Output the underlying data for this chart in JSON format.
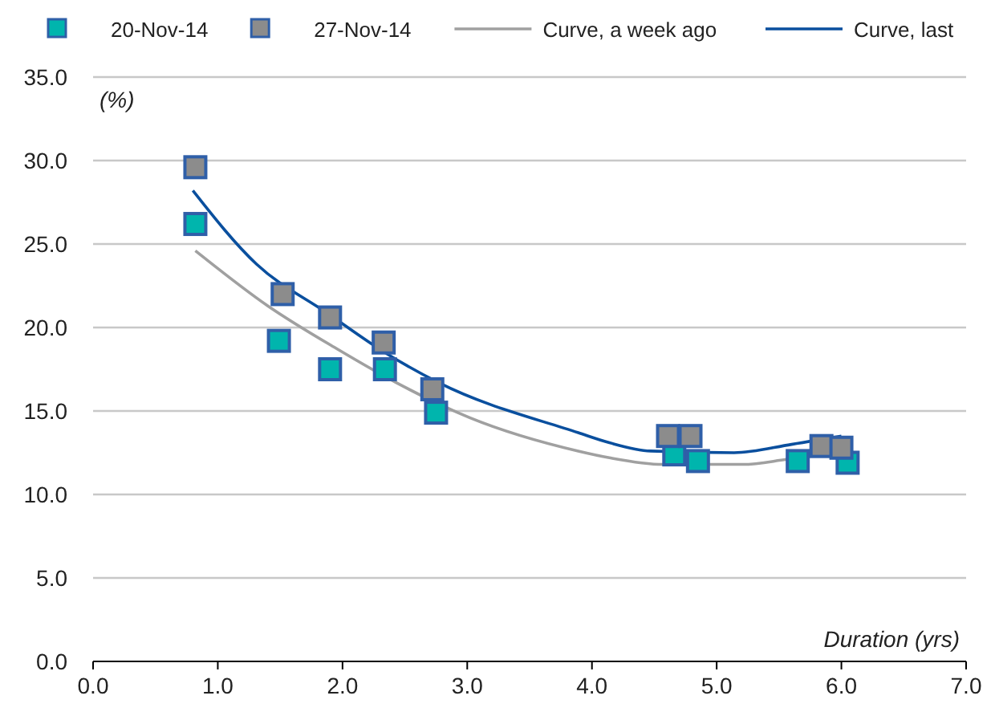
{
  "chart_data": {
    "type": "scatter",
    "xlabel": "Duration (yrs)",
    "ylabel": "(%)",
    "marker": "square",
    "grid": "y",
    "legend": "top",
    "xlim": [
      0,
      7
    ],
    "ylim": [
      0,
      35
    ],
    "xticks": [
      {
        "value": 0,
        "label": "0.0"
      },
      {
        "value": 1,
        "label": "1.0"
      },
      {
        "value": 2,
        "label": "2.0"
      },
      {
        "value": 3,
        "label": "3.0"
      },
      {
        "value": 4,
        "label": "4.0"
      },
      {
        "value": 5,
        "label": "5.0"
      },
      {
        "value": 6,
        "label": "6.0"
      },
      {
        "value": 7,
        "label": "7.0"
      }
    ],
    "yticks": [
      {
        "value": 0,
        "label": "0.0"
      },
      {
        "value": 5,
        "label": "5.0"
      },
      {
        "value": 10,
        "label": "10.0"
      },
      {
        "value": 15,
        "label": "15.0"
      },
      {
        "value": 20,
        "label": "20.0"
      },
      {
        "value": 25,
        "label": "25.0"
      },
      {
        "value": 30,
        "label": "30.0"
      },
      {
        "value": 35,
        "label": "35.0"
      }
    ],
    "series": [
      {
        "name": "20-Nov-14",
        "color": "#00b5ad",
        "x": [
          0.82,
          1.49,
          1.9,
          2.34,
          2.75,
          4.66,
          4.85,
          5.65,
          6.05
        ],
        "values": [
          26.2,
          19.2,
          17.5,
          17.5,
          14.9,
          12.4,
          12.0,
          12.0,
          11.9
        ]
      },
      {
        "name": "27-Nov-14",
        "color": "#8c8c8c",
        "x": [
          0.82,
          1.52,
          1.9,
          2.33,
          2.72,
          4.61,
          4.79,
          5.84,
          6.0
        ],
        "values": [
          29.6,
          22.0,
          20.6,
          19.1,
          16.3,
          13.5,
          13.5,
          12.9,
          12.8
        ]
      },
      {
        "name": "Curve, a week ago",
        "type": "line",
        "marker": "none",
        "color": "#a0a0a0",
        "x": [
          0.82,
          1.4,
          1.96,
          2.43,
          3.02,
          3.89,
          4.14,
          4.57,
          5.21,
          5.56,
          5.95
        ],
        "values": [
          24.6,
          21.3,
          18.7,
          16.7,
          14.6,
          12.6,
          12.2,
          11.8,
          11.8,
          12.1,
          12.5
        ]
      },
      {
        "name": "Curve, last",
        "type": "line",
        "marker": "none",
        "color": "#0a4f9e",
        "x": [
          0.8,
          1.31,
          1.87,
          2.34,
          2.77,
          3.89,
          4.14,
          4.47,
          5.14,
          5.6,
          6.0
        ],
        "values": [
          28.2,
          23.8,
          20.9,
          18.5,
          16.7,
          13.7,
          13.1,
          12.6,
          12.5,
          13.0,
          13.5
        ]
      }
    ]
  }
}
